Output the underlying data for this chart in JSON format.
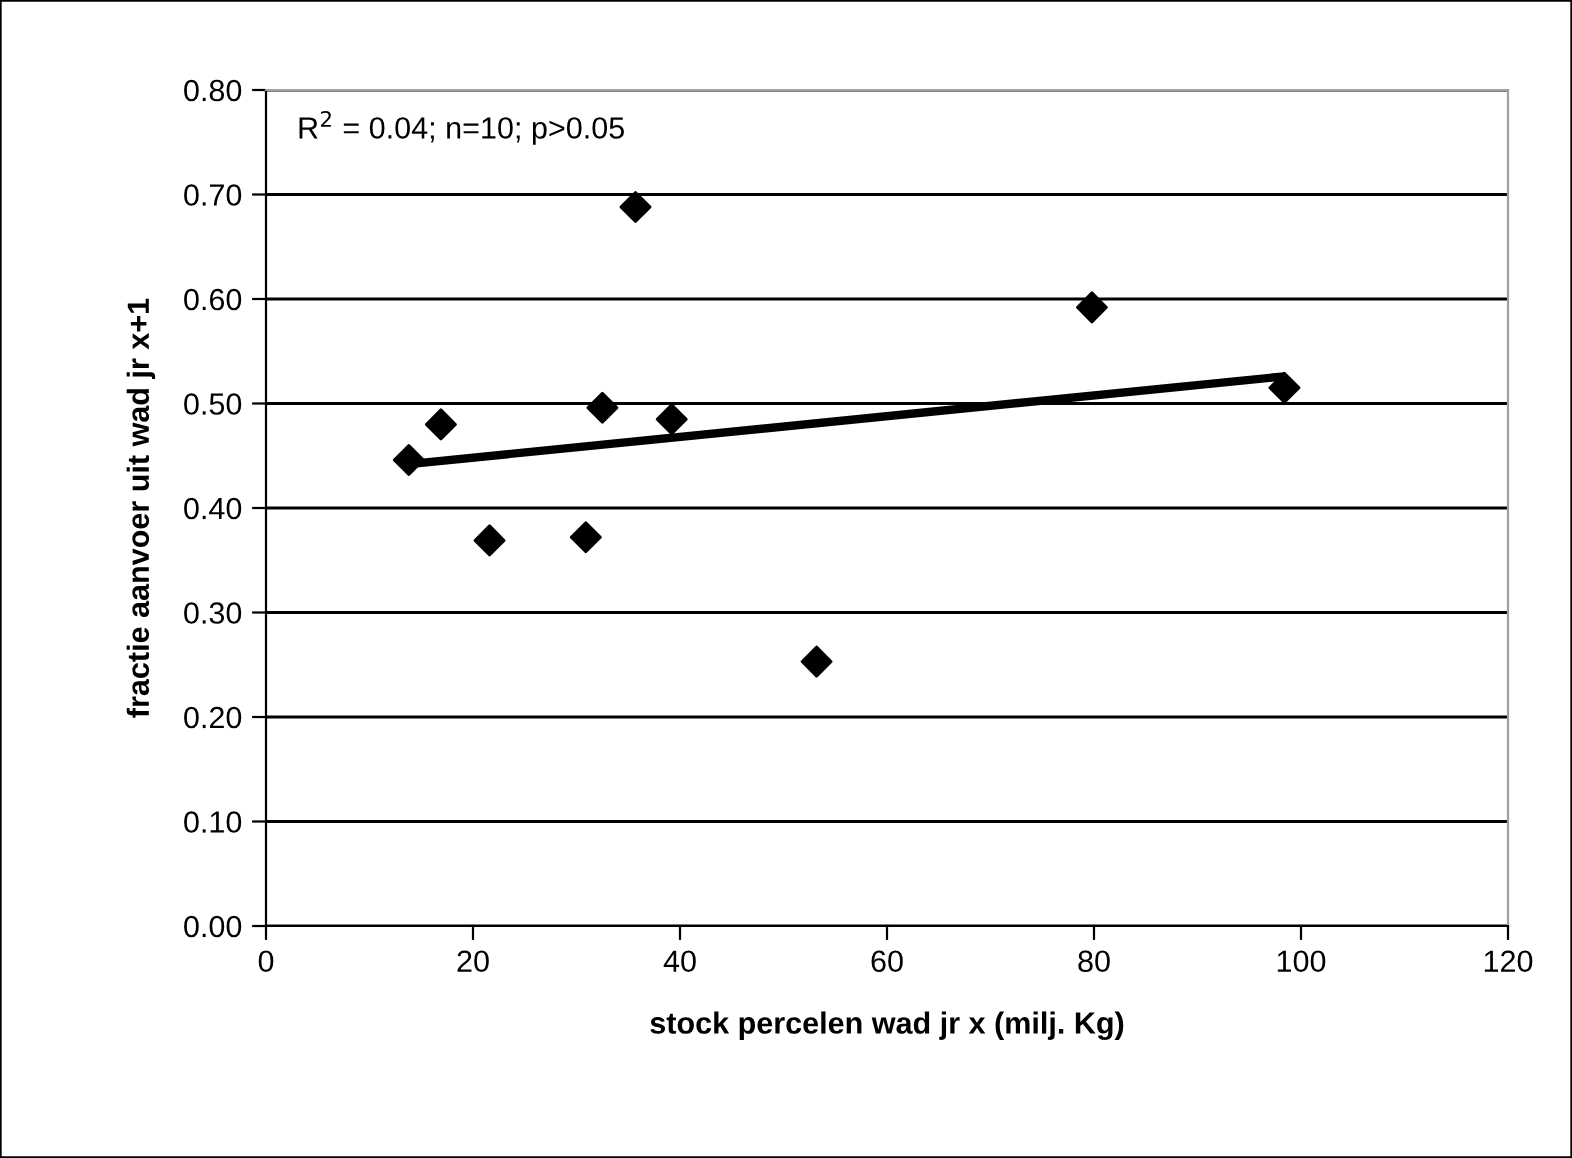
{
  "chart_data": {
    "type": "scatter",
    "xlabel": "stock percelen wad jr x (milj. Kg)",
    "ylabel": "fractie aanvoer uit wad jr x+1",
    "annotations": [
      "R$^{2}$ = 0.04; n=10; p>0.05"
    ],
    "series": [
      {
        "color": "#000000",
        "marker": "diamond",
        "x": [
          13.8,
          16.9,
          21.6,
          30.9,
          32.5,
          35.7,
          39.2,
          53.2,
          79.8,
          98.4
        ],
        "values": [
          0.446,
          0.48,
          0.369,
          0.372,
          0.496,
          0.688,
          0.485,
          0.253,
          0.592,
          0.515
        ]
      },
      {
        "type": "line",
        "color": "#000000",
        "marker": "none",
        "line_style": "solid",
        "x": [
          13.8,
          98.4
        ],
        "values": [
          0.442,
          0.526
        ]
      }
    ],
    "xlim": [
      0,
      120
    ],
    "xticks": [
      0,
      20,
      40,
      60,
      80,
      100,
      120
    ],
    "ylim": [
      0,
      0.8
    ],
    "yticks": [
      {
        "value": 0,
        "label": "0.00"
      },
      {
        "value": 0.1,
        "label": "0.10"
      },
      {
        "value": 0.2,
        "label": "0.20"
      },
      {
        "value": 0.3,
        "label": "0.30"
      },
      {
        "value": 0.4,
        "label": "0.40"
      },
      {
        "value": 0.5,
        "label": "0.50"
      },
      {
        "value": 0.6,
        "label": "0.60"
      },
      {
        "value": 0.7,
        "label": "0.70"
      },
      {
        "value": 0.8,
        "label": "0.80"
      }
    ],
    "grid": "y",
    "legend": false
  }
}
